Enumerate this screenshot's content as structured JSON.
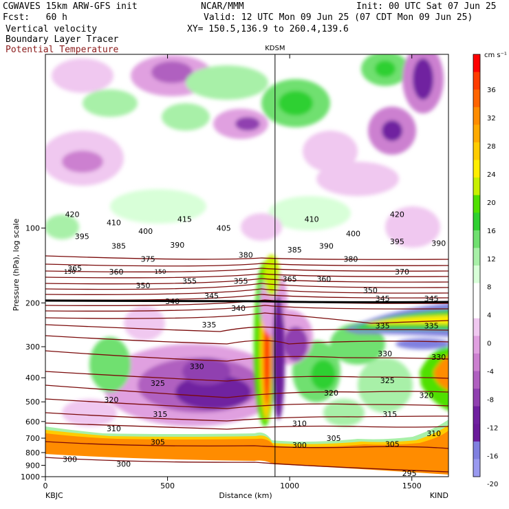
{
  "header": {
    "model": "CGWAVES 15km ARW-GFS init",
    "org": "NCAR/MMM",
    "init": "Init: 00 UTC Sat 07 Jun 25",
    "fcst": "Fcst:   60 h",
    "valid": "Valid: 12 UTC Mon 09 Jun 25 (07 CDT Mon 09 Jun 25)",
    "field1": "Vertical velocity",
    "xy": "XY= 150.5,136.9 to 260.4,139.6",
    "field2": "Boundary Layer Tracer",
    "field3": "Potential Temperature"
  },
  "colors": {
    "theta_contour": "#7a0a0a",
    "field3_label": "#8b1a1a"
  },
  "chart_data": {
    "type": "heatmap",
    "station_marker": "KDSM",
    "station_distance_km": 940,
    "xlabel": "Distance (km)",
    "ylabel": "Pressure (hPa), log scale",
    "x_start_label": "KBJC",
    "x_end_label": "KIND",
    "xlim": [
      0,
      1650
    ],
    "x_ticks": [
      0,
      500,
      1000,
      1500
    ],
    "ylim": [
      1000,
      20
    ],
    "y_ticks": [
      100,
      200,
      300,
      400,
      500,
      600,
      700,
      800,
      900,
      1000
    ],
    "colorbar": {
      "units": "cm s⁻¹",
      "ticks": [
        36,
        32,
        28,
        24,
        20,
        16,
        12,
        8,
        4,
        0,
        -4,
        -8,
        -12,
        -16,
        -20
      ],
      "colors": [
        "#ff0000",
        "#ff3c00",
        "#ff6400",
        "#ff8c00",
        "#ffaa00",
        "#ffcc00",
        "#ffee00",
        "#c8f000",
        "#50e000",
        "#2fd030",
        "#70e070",
        "#a8f0a8",
        "#d8ffd8",
        "#ffffff",
        "#ffffff",
        "#f0c8f0",
        "#e0a0e0",
        "#cc80d0",
        "#b060c0",
        "#9040b0",
        "#7020a0",
        "#6a1a9a",
        "#8080e0",
        "#9a9af0"
      ]
    },
    "theta_labels": [
      {
        "v": 420,
        "x": 110,
        "p": 88
      },
      {
        "v": 410,
        "x": 280,
        "p": 95
      },
      {
        "v": 415,
        "x": 570,
        "p": 92
      },
      {
        "v": 405,
        "x": 730,
        "p": 100
      },
      {
        "v": 400,
        "x": 410,
        "p": 103
      },
      {
        "v": 395,
        "x": 150,
        "p": 108
      },
      {
        "v": 390,
        "x": 540,
        "p": 117
      },
      {
        "v": 385,
        "x": 300,
        "p": 118
      },
      {
        "v": 380,
        "x": 820,
        "p": 128
      },
      {
        "v": 375,
        "x": 420,
        "p": 133
      },
      {
        "v": 365,
        "x": 120,
        "p": 145
      },
      {
        "v": 360,
        "x": 290,
        "p": 150
      },
      {
        "v": 355,
        "x": 590,
        "p": 163
      },
      {
        "v": 355,
        "x": 800,
        "p": 163
      },
      {
        "v": 350,
        "x": 400,
        "p": 170
      },
      {
        "v": 345,
        "x": 680,
        "p": 187
      },
      {
        "v": 340,
        "x": 520,
        "p": 197
      },
      {
        "v": 340,
        "x": 790,
        "p": 210
      },
      {
        "v": 335,
        "x": 670,
        "p": 245
      },
      {
        "v": 330,
        "x": 620,
        "p": 360
      },
      {
        "v": 325,
        "x": 460,
        "p": 420
      },
      {
        "v": 320,
        "x": 270,
        "p": 490
      },
      {
        "v": 315,
        "x": 470,
        "p": 560
      },
      {
        "v": 310,
        "x": 280,
        "p": 640
      },
      {
        "v": 305,
        "x": 460,
        "p": 725
      },
      {
        "v": 300,
        "x": 100,
        "p": 850
      },
      {
        "v": 300,
        "x": 320,
        "p": 890
      },
      {
        "v": 410,
        "x": 1090,
        "p": 92
      },
      {
        "v": 420,
        "x": 1440,
        "p": 88
      },
      {
        "v": 400,
        "x": 1260,
        "p": 105
      },
      {
        "v": 395,
        "x": 1440,
        "p": 113
      },
      {
        "v": 390,
        "x": 1610,
        "p": 115
      },
      {
        "v": 390,
        "x": 1150,
        "p": 118
      },
      {
        "v": 385,
        "x": 1020,
        "p": 122
      },
      {
        "v": 380,
        "x": 1250,
        "p": 133
      },
      {
        "v": 370,
        "x": 1460,
        "p": 150
      },
      {
        "v": 365,
        "x": 1000,
        "p": 160
      },
      {
        "v": 360,
        "x": 1140,
        "p": 160
      },
      {
        "v": 350,
        "x": 1330,
        "p": 178
      },
      {
        "v": 345,
        "x": 1380,
        "p": 192
      },
      {
        "v": 345,
        "x": 1580,
        "p": 192
      },
      {
        "v": 335,
        "x": 1380,
        "p": 247
      },
      {
        "v": 335,
        "x": 1580,
        "p": 247
      },
      {
        "v": 330,
        "x": 1390,
        "p": 320
      },
      {
        "v": 330,
        "x": 1610,
        "p": 330
      },
      {
        "v": 325,
        "x": 1400,
        "p": 410
      },
      {
        "v": 320,
        "x": 1170,
        "p": 460
      },
      {
        "v": 320,
        "x": 1560,
        "p": 470
      },
      {
        "v": 315,
        "x": 1410,
        "p": 560
      },
      {
        "v": 310,
        "x": 1040,
        "p": 610
      },
      {
        "v": 310,
        "x": 1590,
        "p": 670
      },
      {
        "v": 305,
        "x": 1180,
        "p": 700
      },
      {
        "v": 305,
        "x": 1420,
        "p": 740
      },
      {
        "v": 300,
        "x": 1040,
        "p": 745
      },
      {
        "v": 295,
        "x": 1490,
        "p": 970
      }
    ],
    "bl_tracer_labels": [
      {
        "v": 150,
        "x": 100,
        "p": 150
      },
      {
        "v": 150,
        "x": 470,
        "p": 150
      }
    ]
  }
}
